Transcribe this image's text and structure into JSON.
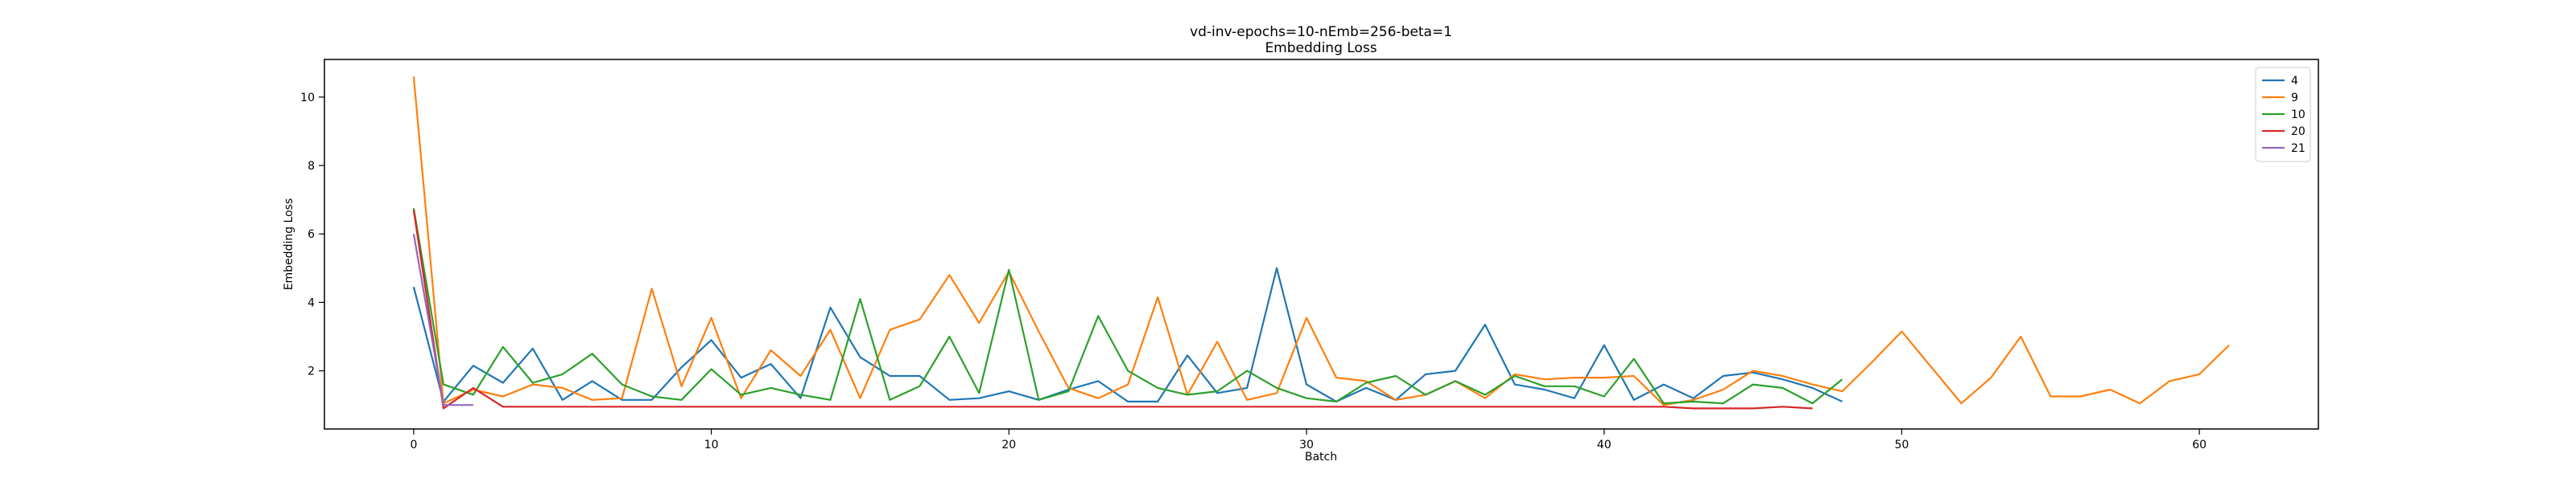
{
  "chart_data": {
    "type": "line",
    "title": "vd-inv-epochs=10-nEmb=256-beta=1",
    "subtitle": "Embedding Loss",
    "xlabel": "Batch",
    "ylabel": "Embedding Loss",
    "xlim": [
      -3,
      64
    ],
    "ylim": [
      0.3,
      11.1
    ],
    "xticks": [
      0,
      10,
      20,
      30,
      40,
      50,
      60
    ],
    "yticks": [
      2,
      4,
      6,
      8,
      10
    ],
    "grid": false,
    "legend_position": "top-right",
    "series": [
      {
        "name": "4",
        "color": "#1f77b4",
        "values": [
          4.45,
          1.1,
          2.15,
          1.65,
          2.65,
          1.15,
          1.7,
          1.15,
          1.15,
          2.1,
          2.9,
          1.8,
          2.2,
          1.2,
          3.85,
          2.4,
          1.85,
          1.85,
          1.15,
          1.2,
          1.4,
          1.15,
          1.45,
          1.7,
          1.1,
          1.1,
          2.45,
          1.35,
          1.5,
          5.0,
          1.6,
          1.1,
          1.5,
          1.15,
          1.9,
          2.0,
          3.35,
          1.6,
          1.45,
          1.2,
          2.75,
          1.15,
          1.6,
          1.2,
          1.85,
          1.95,
          1.75,
          1.5,
          1.1
        ]
      },
      {
        "name": "9",
        "color": "#ff7f0e",
        "values": [
          10.6,
          1.05,
          1.45,
          1.25,
          1.6,
          1.5,
          1.15,
          1.2,
          4.4,
          1.55,
          3.55,
          1.2,
          2.6,
          1.85,
          3.2,
          1.2,
          3.2,
          3.5,
          4.8,
          3.4,
          4.9,
          3.15,
          1.5,
          1.2,
          1.6,
          4.15,
          1.3,
          2.85,
          1.15,
          1.35,
          3.55,
          1.8,
          1.7,
          1.15,
          1.3,
          1.7,
          1.2,
          1.9,
          1.75,
          1.8,
          1.8,
          1.85,
          1.0,
          1.15,
          1.45,
          2.0,
          1.85,
          1.6,
          1.4,
          2.25,
          3.15,
          2.1,
          1.05,
          1.8,
          3.0,
          1.25,
          1.25,
          1.45,
          1.05,
          1.7,
          1.9,
          2.75
        ]
      },
      {
        "name": "10",
        "color": "#2ca02c",
        "values": [
          6.75,
          1.6,
          1.3,
          2.7,
          1.65,
          1.9,
          2.5,
          1.6,
          1.25,
          1.15,
          2.05,
          1.3,
          1.5,
          1.3,
          1.15,
          4.1,
          1.15,
          1.55,
          3.0,
          1.35,
          4.95,
          1.15,
          1.4,
          3.6,
          2.0,
          1.5,
          1.3,
          1.4,
          2.0,
          1.5,
          1.2,
          1.1,
          1.65,
          1.85,
          1.3,
          1.7,
          1.3,
          1.85,
          1.55,
          1.55,
          1.25,
          2.35,
          1.05,
          1.1,
          1.05,
          1.6,
          1.5,
          1.05,
          1.75
        ]
      },
      {
        "name": "20",
        "color": "#d62728",
        "values": [
          6.7,
          0.9,
          1.5,
          0.95,
          0.95,
          0.95,
          0.95,
          0.95,
          0.95,
          0.95,
          0.95,
          0.95,
          0.95,
          0.95,
          0.95,
          0.95,
          0.95,
          0.95,
          0.95,
          0.95,
          0.95,
          0.95,
          0.95,
          0.95,
          0.95,
          0.95,
          0.95,
          0.95,
          0.95,
          0.95,
          0.95,
          0.95,
          0.95,
          0.95,
          0.95,
          0.95,
          0.95,
          0.95,
          0.95,
          0.95,
          0.95,
          0.95,
          0.95,
          0.9,
          0.9,
          0.9,
          0.95,
          0.9
        ]
      },
      {
        "name": "21",
        "color": "#9467bd",
        "values": [
          6.0,
          1.0,
          1.0
        ]
      }
    ]
  }
}
